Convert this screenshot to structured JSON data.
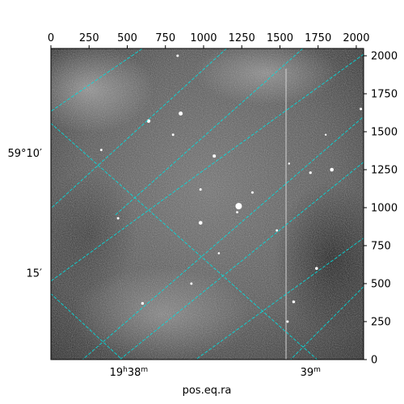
{
  "chart_data": {
    "type": "image",
    "title": "",
    "xlabel": "pos.eq.ra",
    "ylabel": "",
    "pixel_axes": {
      "x": {
        "range": [
          0,
          2048
        ],
        "ticks": [
          0,
          250,
          500,
          750,
          1000,
          1250,
          1500,
          1750,
          2000
        ],
        "tick_labels": [
          "0",
          "250",
          "500",
          "750",
          "1000",
          "1250",
          "1500",
          "1750",
          "2000"
        ],
        "position": "top"
      },
      "y": {
        "range": [
          0,
          2048
        ],
        "ticks": [
          0,
          250,
          500,
          750,
          1000,
          1250,
          1500,
          1750,
          2000
        ],
        "tick_labels": [
          "0",
          "250",
          "500",
          "750",
          "1000",
          "1250",
          "1500",
          "1750",
          "2000"
        ],
        "position": "right"
      }
    },
    "world_axes": {
      "ra": {
        "tick_labels": [
          {
            "x": 510,
            "text_main": "19",
            "sup1": "h",
            "text_mid": "38",
            "sup2": "m"
          },
          {
            "x": 1700,
            "text_main": "39",
            "sup1": "m",
            "text_mid": "",
            "sup2": ""
          }
        ]
      },
      "dec": {
        "tick_labels": [
          {
            "y": 1360,
            "text": "59°10′"
          },
          {
            "y": 570,
            "text": "15′"
          }
        ]
      }
    },
    "grid": true,
    "grid_color": "#00e0e0",
    "image_colormap": "gray",
    "grid_lines": [
      {
        "p1": [
          -50,
          1600
        ],
        "p2": [
          600,
          2048
        ]
      },
      {
        "p1": [
          -50,
          1600
        ],
        "p2": [
          1800,
          -50
        ]
      },
      {
        "p1": [
          -50,
          480
        ],
        "p2": [
          520,
          -50
        ]
      },
      {
        "p1": [
          -50,
          480
        ],
        "p2": [
          2100,
          2048
        ]
      },
      {
        "p1": [
          150,
          -50
        ],
        "p2": [
          2048,
          1600
        ]
      },
      {
        "p1": [
          880,
          -50
        ],
        "p2": [
          2048,
          800
        ]
      },
      {
        "p1": [
          2048,
          1300
        ],
        "p2": [
          390,
          -50
        ]
      },
      {
        "p1": [
          2048,
          480
        ],
        "p2": [
          1520,
          -50
        ]
      },
      {
        "p1": [
          1150,
          2048
        ],
        "p2": [
          -50,
          950
        ]
      },
      {
        "p1": [
          1650,
          2048
        ],
        "p2": [
          420,
          950
        ]
      }
    ],
    "stars": [
      [
        1230,
        1010,
        4
      ],
      [
        830,
        2000,
        1.5
      ],
      [
        850,
        1620,
        2.5
      ],
      [
        800,
        1480,
        1.5
      ],
      [
        1070,
        1340,
        2
      ],
      [
        980,
        900,
        2.3
      ],
      [
        1740,
        600,
        1.8
      ],
      [
        1590,
        380,
        1.7
      ],
      [
        440,
        930,
        1.5
      ],
      [
        1550,
        250,
        1.5
      ],
      [
        1840,
        1250,
        2.3
      ],
      [
        2030,
        1650,
        1.5
      ],
      [
        600,
        370,
        1.7
      ],
      [
        640,
        1570,
        2.2
      ],
      [
        1320,
        1100,
        1.5
      ],
      [
        1700,
        1230,
        1.6
      ],
      [
        1220,
        970,
        1.4
      ],
      [
        1480,
        850,
        1.4
      ],
      [
        920,
        500,
        1.5
      ],
      [
        980,
        1120,
        1.5
      ],
      [
        330,
        1380,
        1.4
      ],
      [
        1800,
        1480,
        1.2
      ],
      [
        1560,
        1290,
        1.2
      ],
      [
        1100,
        700,
        1.3
      ]
    ],
    "column_streak": {
      "x": 1540
    }
  }
}
